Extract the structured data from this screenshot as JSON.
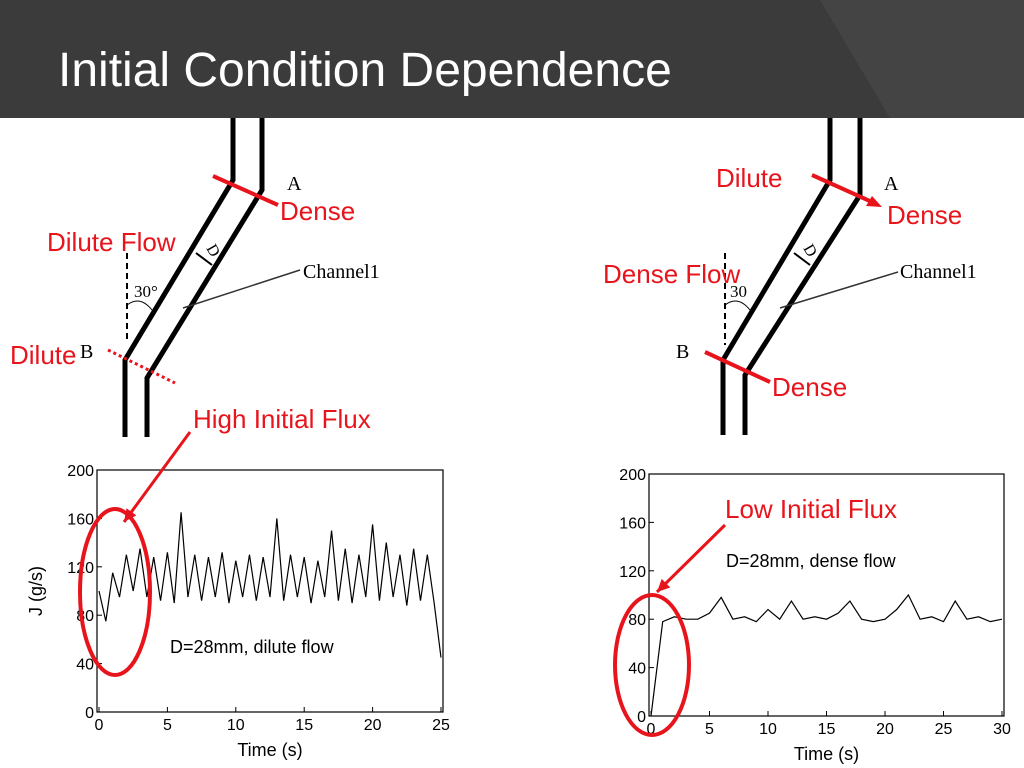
{
  "title": "Initial Condition Dependence",
  "left_diagram": {
    "point_a": "A",
    "point_b": "B",
    "channel": "Channel1",
    "gap": "D",
    "angle": "30°",
    "top_state": "Dense",
    "flow": "Dilute Flow",
    "bottom_state": "Dilute"
  },
  "right_diagram": {
    "top_upstream": "Dilute",
    "point_a": "A",
    "top_downstream": "Dense",
    "flow": "Dense Flow",
    "angle": "30",
    "point_b": "B",
    "bottom_state": "Dense",
    "channel": "Channel1",
    "gap": "D"
  },
  "chart_data": [
    {
      "type": "line",
      "callout": "High Initial Flux",
      "annotation": "D=28mm, dilute flow",
      "xlabel": "Time (s)",
      "ylabel": "J (g/s)",
      "x": [
        0,
        0.5,
        1,
        1.5,
        2,
        2.5,
        3,
        3.5,
        4,
        4.5,
        5,
        5.5,
        6,
        6.5,
        7,
        7.5,
        8,
        8.5,
        9,
        9.5,
        10,
        10.5,
        11,
        11.5,
        12,
        12.5,
        13,
        13.5,
        14,
        14.5,
        15,
        15.5,
        16,
        16.5,
        17,
        17.5,
        18,
        18.5,
        19,
        19.5,
        20,
        20.5,
        21,
        21.5,
        22,
        22.5,
        23,
        23.5,
        24,
        24.5,
        25
      ],
      "series": [
        {
          "color": "#000000",
          "values": [
            100,
            75,
            115,
            95,
            130,
            100,
            135,
            95,
            128,
            92,
            132,
            90,
            165,
            95,
            130,
            92,
            128,
            95,
            132,
            90,
            125,
            95,
            130,
            92,
            128,
            95,
            160,
            92,
            130,
            95,
            128,
            90,
            125,
            95,
            150,
            92,
            135,
            90,
            130,
            95,
            155,
            92,
            140,
            95,
            130,
            88,
            135,
            92,
            130,
            90,
            45
          ]
        }
      ],
      "xlim": [
        0,
        25
      ],
      "xticks": [
        0,
        5,
        10,
        15,
        20,
        25
      ],
      "ylim": [
        0,
        200
      ],
      "yticks": [
        0,
        40,
        80,
        120,
        160,
        200
      ]
    },
    {
      "type": "line",
      "callout": "Low Initial Flux",
      "annotation": "D=28mm, dense flow",
      "xlabel": "Time (s)",
      "x": [
        0,
        1,
        2,
        3,
        4,
        5,
        6,
        7,
        8,
        9,
        10,
        11,
        12,
        13,
        14,
        15,
        16,
        17,
        18,
        19,
        20,
        21,
        22,
        23,
        24,
        25,
        26,
        27,
        28,
        29,
        30
      ],
      "series": [
        {
          "color": "#000000",
          "values": [
            0,
            78,
            82,
            80,
            80,
            85,
            98,
            80,
            82,
            78,
            88,
            80,
            95,
            80,
            82,
            80,
            85,
            95,
            80,
            78,
            80,
            88,
            100,
            80,
            82,
            78,
            95,
            80,
            82,
            78,
            80
          ]
        }
      ],
      "xlim": [
        0,
        30
      ],
      "xticks": [
        0,
        5,
        10,
        15,
        20,
        25,
        30
      ],
      "ylim": [
        0,
        200
      ],
      "yticks": [
        0,
        40,
        80,
        120,
        160,
        200
      ]
    }
  ]
}
